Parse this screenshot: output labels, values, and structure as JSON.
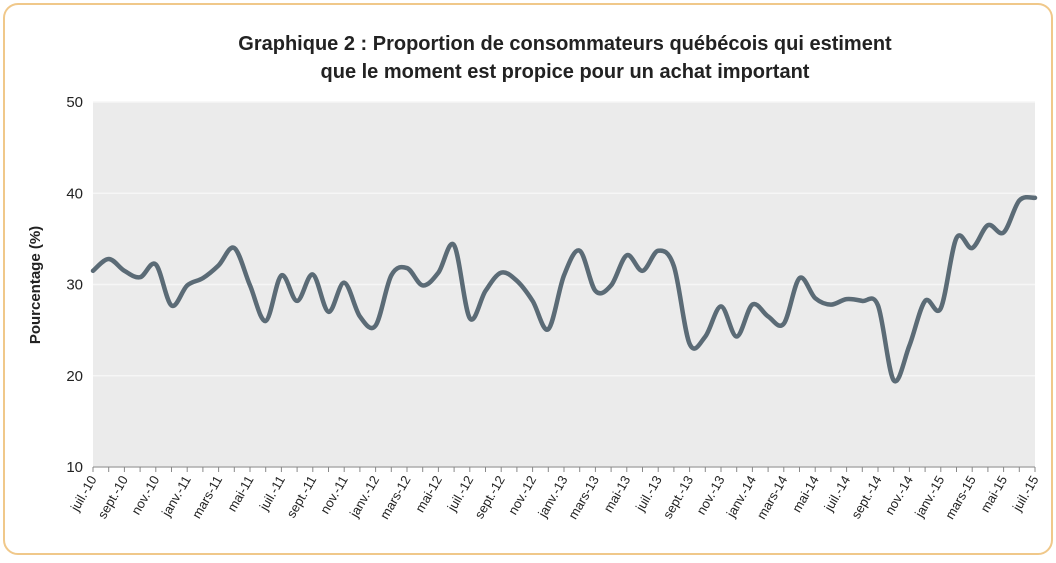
{
  "chart_data": {
    "type": "line",
    "title": [
      "Graphique 2 : Proportion de consommateurs québécois qui estiment",
      "que le moment est propice pour un achat important"
    ],
    "y_label": "Pourcentage (%)",
    "categories": [
      "juil.-10",
      null,
      "sept.-10",
      null,
      "nov.-10",
      null,
      "janv.-11",
      null,
      "mars-11",
      null,
      "mai-11",
      null,
      "juil.-11",
      null,
      "sept.-11",
      null,
      "nov.-11",
      null,
      "janv.-12",
      null,
      "mars-12",
      null,
      "mai-12",
      null,
      "juil.-12",
      null,
      "sept.-12",
      null,
      "nov.-12",
      null,
      "janv.-13",
      null,
      "mars-13",
      null,
      "mai-13",
      null,
      "juil.-13",
      null,
      "sept.-13",
      null,
      "nov.-13",
      null,
      "janv.-14",
      null,
      "mars-14",
      null,
      "mai-14",
      null,
      "juil.-14",
      null,
      "sept.-14",
      null,
      "nov.-14",
      null,
      "janv.-15",
      null,
      "mars-15",
      null,
      "mai-15",
      null,
      "juil.-15"
    ],
    "values": [
      31.5,
      32.8,
      31.5,
      30.8,
      32.2,
      27.7,
      29.9,
      30.7,
      32.1,
      34,
      29.9,
      26,
      31,
      28.2,
      31.1,
      27,
      30.2,
      26.5,
      25.5,
      31,
      31.8,
      29.9,
      31.3,
      34.3,
      26.3,
      29.3,
      31.3,
      30.4,
      28.2,
      25.1,
      31,
      33.7,
      29.3,
      29.9,
      33.2,
      31.5,
      33.7,
      32,
      23.5,
      24.3,
      27.6,
      24.3,
      27.8,
      26.5,
      25.7,
      30.7,
      28.5,
      27.8,
      28.4,
      28.2,
      27.7,
      19.5,
      23.3,
      28.2,
      27.4,
      35.1,
      34,
      36.5,
      35.7,
      39.2,
      39.5
    ],
    "color": "#5b6b76",
    "ylim": [
      10,
      50
    ],
    "yticks": [
      10,
      20,
      30,
      40,
      50
    ],
    "grid": true
  }
}
